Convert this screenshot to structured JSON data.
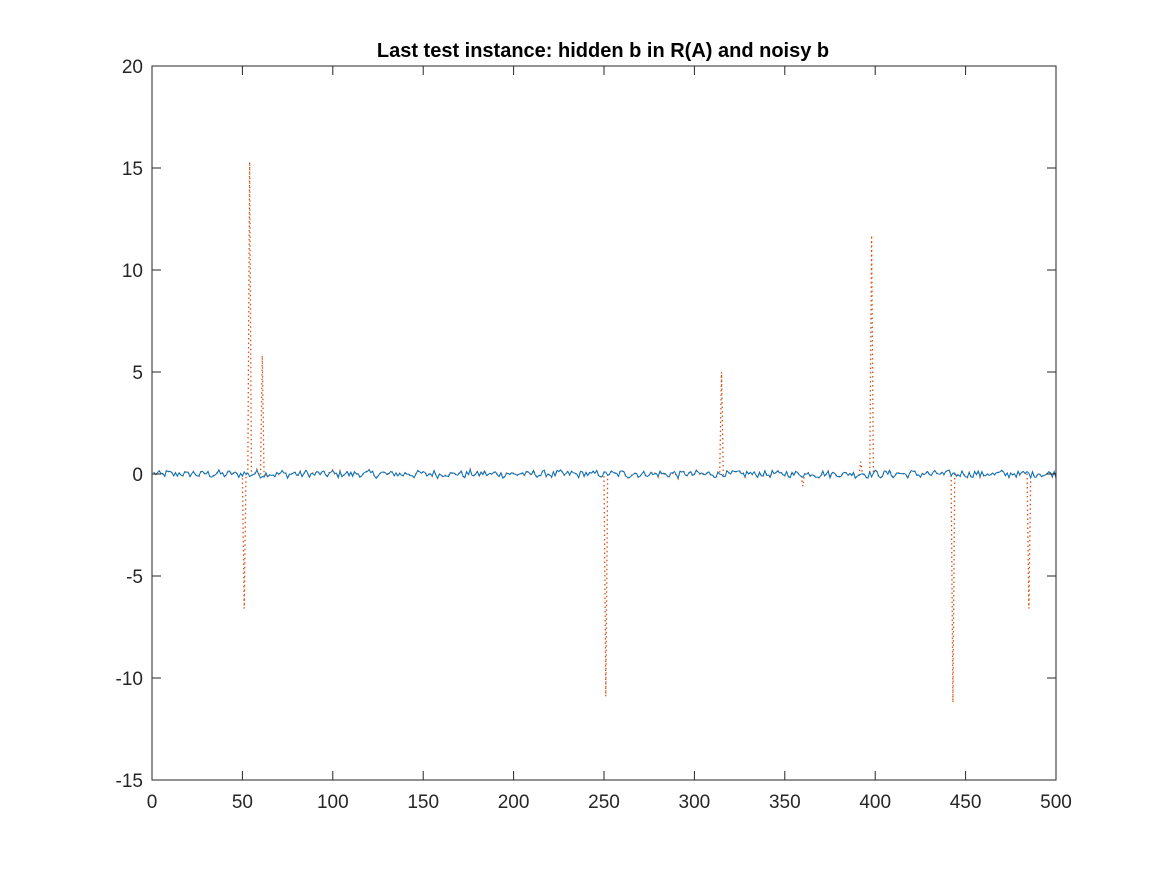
{
  "chart_data": {
    "type": "line",
    "title": "Last test instance: hidden b in R(A) and noisy b",
    "xlabel": "",
    "ylabel": "",
    "xlim": [
      0,
      500
    ],
    "ylim": [
      -15,
      20
    ],
    "xticks": [
      0,
      50,
      100,
      150,
      200,
      250,
      300,
      350,
      400,
      450,
      500
    ],
    "yticks": [
      -15,
      -10,
      -5,
      0,
      5,
      10,
      15,
      20
    ],
    "grid": false,
    "legend": null,
    "series": [
      {
        "color": "#0072BD",
        "style": "solid",
        "description_values": "noise-like signal of length 500 with amplitude about ±0.25 around 0",
        "x_range": [
          1,
          500
        ],
        "amplitude": 0.25
      },
      {
        "color": "#D95319",
        "style": "dotted",
        "x_range": [
          1,
          500
        ],
        "spikes": [
          {
            "x": 51,
            "y": -6.6
          },
          {
            "x": 54,
            "y": 15.3
          },
          {
            "x": 61,
            "y": 5.8
          },
          {
            "x": 251,
            "y": -10.9
          },
          {
            "x": 315,
            "y": 5.0
          },
          {
            "x": 360,
            "y": -0.6
          },
          {
            "x": 392,
            "y": 0.6
          },
          {
            "x": 398,
            "y": 11.7
          },
          {
            "x": 443,
            "y": -11.2
          },
          {
            "x": 485,
            "y": -6.6
          }
        ]
      }
    ]
  }
}
